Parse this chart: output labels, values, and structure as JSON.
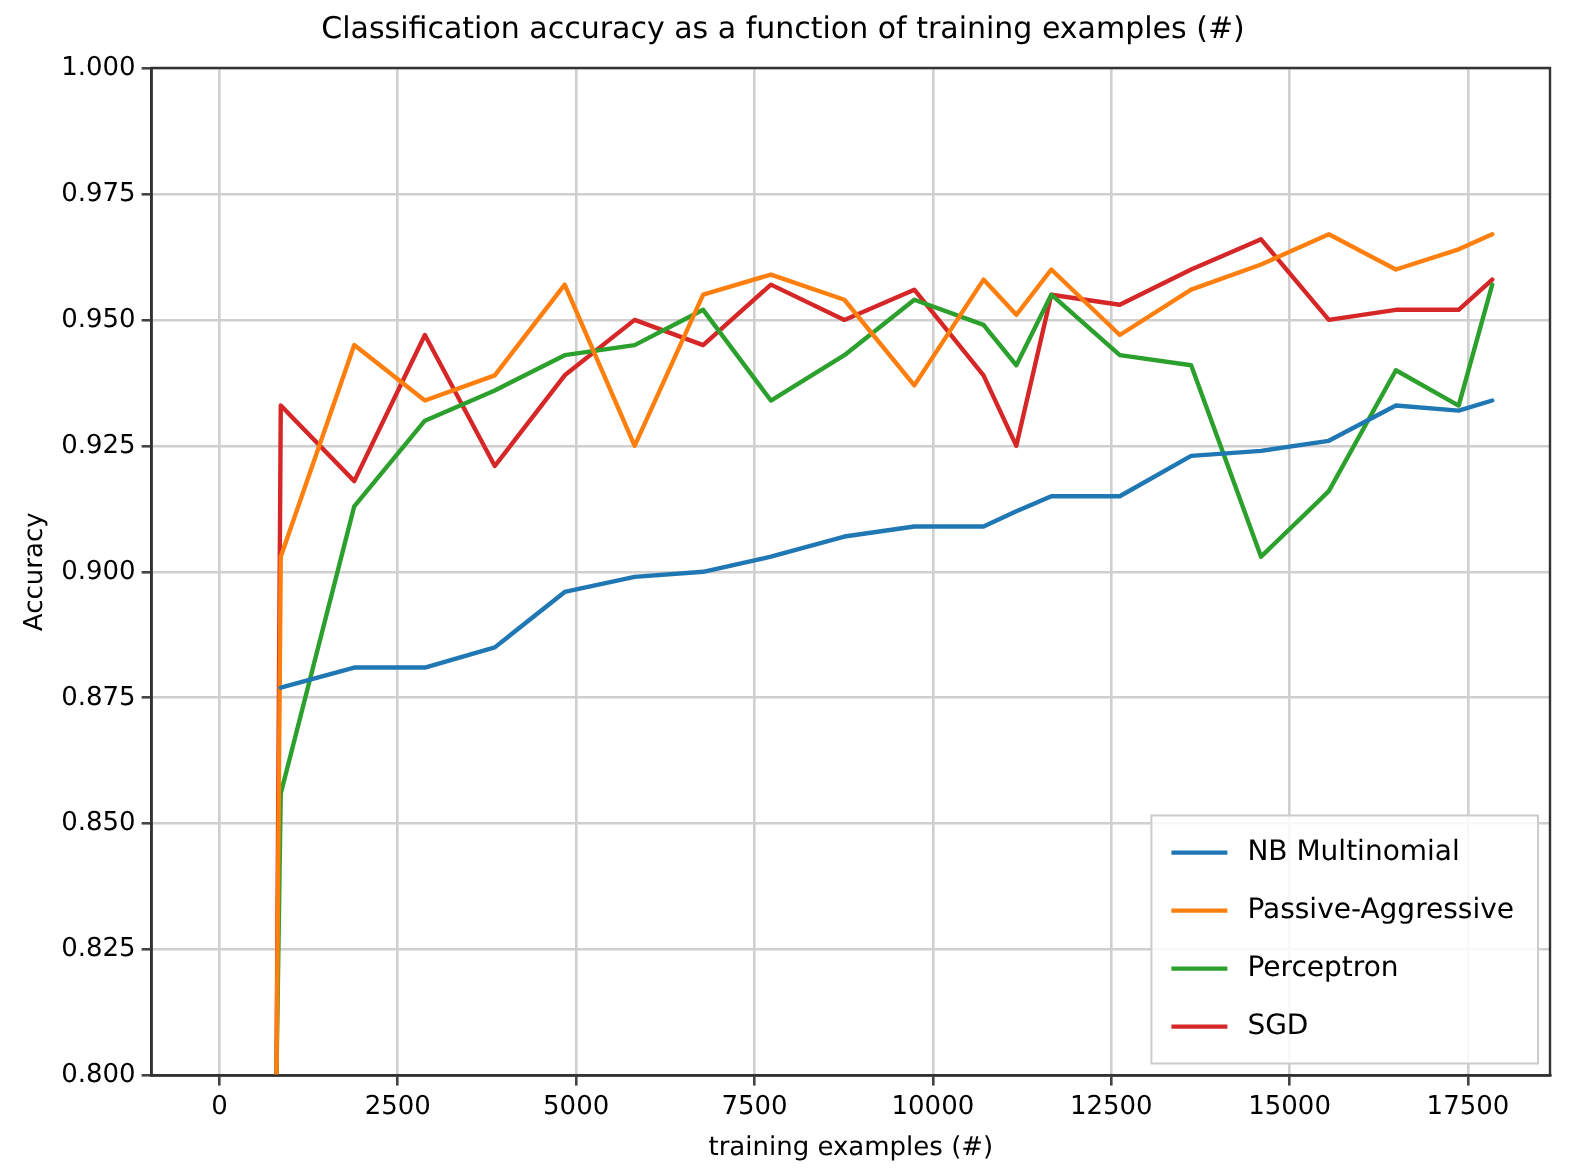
{
  "chart_data": {
    "type": "line",
    "title": "Classification accuracy as a function of training examples (#)",
    "xlabel": "training examples (#)",
    "ylabel": "Accuracy",
    "x": [
      800,
      860,
      1890,
      2880,
      3860,
      4840,
      5820,
      6780,
      7730,
      8760,
      9740,
      10710,
      11170,
      11660,
      12620,
      13620,
      14600,
      15550,
      16490,
      17370,
      17840
    ],
    "series": [
      {
        "name": "NB Multinomial",
        "color": "#1f77b4",
        "values": [
          null,
          0.877,
          0.881,
          0.881,
          0.885,
          0.896,
          0.899,
          0.9,
          0.903,
          0.907,
          0.909,
          0.909,
          0.912,
          0.915,
          0.915,
          0.923,
          0.924,
          0.926,
          0.933,
          0.932,
          0.934
        ]
      },
      {
        "name": "Passive-Aggressive",
        "color": "#ff7f0e",
        "values": [
          0.8,
          0.903,
          0.945,
          0.934,
          0.939,
          0.957,
          0.925,
          0.955,
          0.959,
          0.954,
          0.937,
          0.958,
          0.951,
          0.96,
          0.947,
          0.956,
          0.961,
          0.967,
          0.96,
          0.964,
          0.967
        ]
      },
      {
        "name": "Perceptron",
        "color": "#2ca02c",
        "values": [
          0.8,
          0.856,
          0.913,
          0.93,
          0.936,
          0.943,
          0.945,
          0.952,
          0.934,
          0.943,
          0.954,
          0.949,
          0.941,
          0.955,
          0.943,
          0.941,
          0.903,
          0.916,
          0.94,
          0.933,
          0.957
        ]
      },
      {
        "name": "SGD",
        "color": "#d62728",
        "values": [
          0.8,
          0.933,
          0.918,
          0.947,
          0.921,
          0.939,
          0.95,
          0.945,
          0.957,
          0.95,
          0.956,
          0.939,
          0.925,
          0.955,
          0.953,
          0.96,
          0.966,
          0.95,
          0.952,
          0.952,
          0.958
        ]
      }
    ],
    "xlim": [
      -950,
      18650
    ],
    "ylim": [
      0.8,
      1.0
    ],
    "xticks": [
      0,
      2500,
      5000,
      7500,
      10000,
      12500,
      15000,
      17500
    ],
    "yticks": [
      {
        "value": 0.8,
        "label": "0.800"
      },
      {
        "value": 0.825,
        "label": "0.825"
      },
      {
        "value": 0.85,
        "label": "0.850"
      },
      {
        "value": 0.875,
        "label": "0.875"
      },
      {
        "value": 0.9,
        "label": "0.900"
      },
      {
        "value": 0.925,
        "label": "0.925"
      },
      {
        "value": 0.95,
        "label": "0.950"
      },
      {
        "value": 0.975,
        "label": "0.975"
      },
      {
        "value": 1.0,
        "label": "1.000"
      }
    ],
    "grid": true,
    "legend": "bottom right",
    "marker": "none",
    "line_style": "solid"
  }
}
